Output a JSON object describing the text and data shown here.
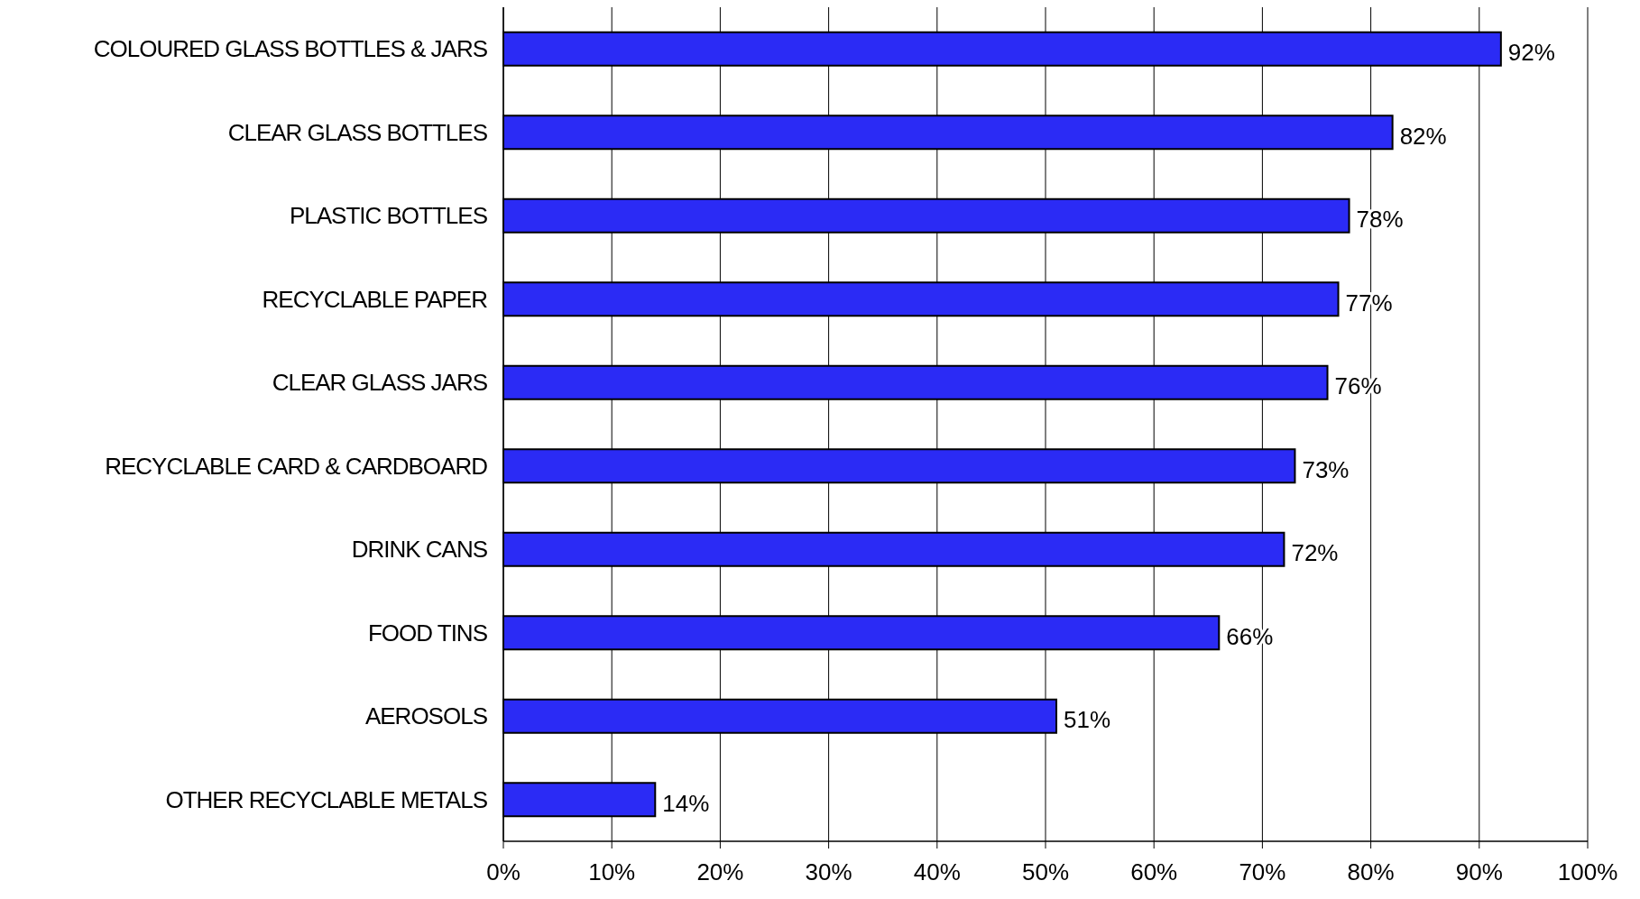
{
  "chart_data": {
    "type": "bar",
    "orientation": "horizontal",
    "categories": [
      "COLOURED GLASS BOTTLES & JARS",
      "CLEAR GLASS BOTTLES",
      "PLASTIC BOTTLES",
      "RECYCLABLE PAPER",
      "CLEAR GLASS JARS",
      "RECYCLABLE CARD & CARDBOARD",
      "DRINK CANS",
      "FOOD TINS",
      "AEROSOLS",
      "OTHER RECYCLABLE METALS"
    ],
    "values": [
      92,
      82,
      78,
      77,
      76,
      73,
      72,
      66,
      51,
      14
    ],
    "value_labels": [
      "92%",
      "82%",
      "78%",
      "77%",
      "76%",
      "73%",
      "72%",
      "66%",
      "51%",
      "14%"
    ],
    "color": "#2b2bf5",
    "xlim": [
      0,
      100
    ],
    "xticks": [
      {
        "value": 0,
        "label": "0%"
      },
      {
        "value": 10,
        "label": "10%"
      },
      {
        "value": 20,
        "label": "20%"
      },
      {
        "value": 30,
        "label": "30%"
      },
      {
        "value": 40,
        "label": "40%"
      },
      {
        "value": 50,
        "label": "50%"
      },
      {
        "value": 60,
        "label": "60%"
      },
      {
        "value": 70,
        "label": "70%"
      },
      {
        "value": 80,
        "label": "80%"
      },
      {
        "value": 90,
        "label": "90%"
      },
      {
        "value": 100,
        "label": "100%"
      }
    ],
    "grid": "x"
  }
}
